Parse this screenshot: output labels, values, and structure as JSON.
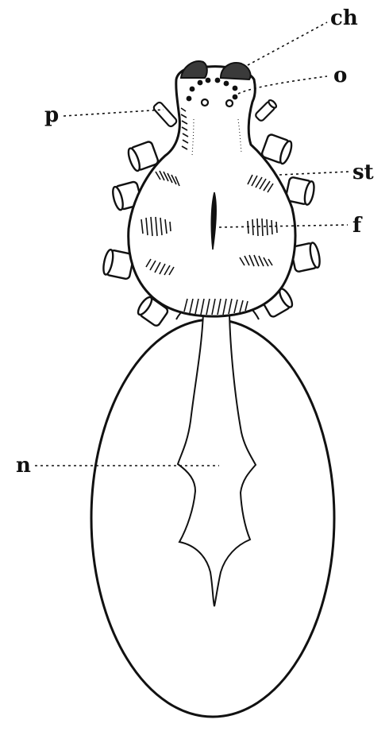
{
  "figure": {
    "labels": {
      "ch": "ch",
      "o": "o",
      "p": "p",
      "st": "st",
      "f": "f",
      "n": "n"
    }
  }
}
